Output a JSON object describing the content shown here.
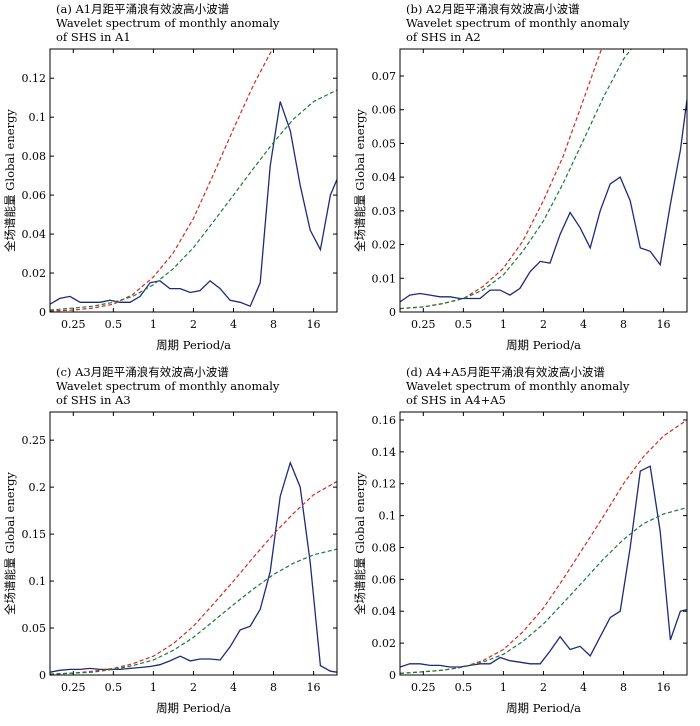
{
  "colors": {
    "spectrum": "#1f2a7a",
    "red_test": "#d22b1f",
    "green_test": "#1b7a3a",
    "frame": "#000000"
  },
  "chart_data": [
    {
      "type": "line",
      "title_line1": "(a) A1月距平涌浪有效波高小波谱",
      "title_line2": "Wavelet spectrum of monthly anomaly",
      "title_line3": "of SHS in A1",
      "xlabel": "周期 Period/a",
      "ylabel": "全场谱能量 Global energy",
      "xscale": "log2",
      "xlim": [
        0.167,
        24
      ],
      "ylim": [
        0,
        0.135
      ],
      "xticks": [
        0.25,
        0.5,
        1,
        2,
        4,
        8,
        16
      ],
      "xtick_labels": [
        "0.25",
        "0.5",
        "1",
        "2",
        "4",
        "8",
        "16"
      ],
      "yticks": [
        0,
        0.02,
        0.04,
        0.06,
        0.08,
        0.1,
        0.12
      ],
      "ytick_labels": [
        "0",
        "0.02",
        "0.04",
        "0.06",
        "0.08",
        "0.1",
        "0.12"
      ],
      "series": [
        {
          "style": "solid",
          "color": "#1f2a7a",
          "x": [
            0.167,
            0.198,
            0.236,
            0.281,
            0.334,
            0.397,
            0.472,
            0.561,
            0.667,
            0.794,
            0.944,
            1.12,
            1.33,
            1.59,
            1.89,
            2.24,
            2.67,
            3.17,
            3.77,
            4.49,
            5.34,
            6.35,
            7.55,
            8.98,
            10.7,
            12.7,
            15.1,
            18.0,
            21.4,
            24.0
          ],
          "y": [
            0.004,
            0.007,
            0.008,
            0.005,
            0.005,
            0.005,
            0.006,
            0.005,
            0.005,
            0.008,
            0.015,
            0.016,
            0.012,
            0.012,
            0.01,
            0.011,
            0.016,
            0.012,
            0.006,
            0.005,
            0.003,
            0.015,
            0.075,
            0.108,
            0.093,
            0.065,
            0.042,
            0.032,
            0.06,
            0.068
          ]
        },
        {
          "style": "dashed",
          "color": "#d22b1f",
          "x": [
            0.167,
            0.25,
            0.35,
            0.5,
            0.7,
            1.0,
            1.4,
            2.0,
            2.8,
            4.0,
            5.7,
            8.0,
            9.0
          ],
          "y": [
            0.0005,
            0.001,
            0.002,
            0.004,
            0.009,
            0.018,
            0.03,
            0.048,
            0.07,
            0.094,
            0.117,
            0.136,
            0.145
          ]
        },
        {
          "style": "dashed",
          "color": "#1b7a3a",
          "x": [
            0.167,
            0.25,
            0.35,
            0.5,
            0.7,
            1.0,
            1.4,
            2.0,
            2.8,
            4.0,
            5.7,
            8.0,
            11.3,
            16.0,
            24.0
          ],
          "y": [
            0.001,
            0.002,
            0.003,
            0.005,
            0.008,
            0.014,
            0.022,
            0.033,
            0.046,
            0.06,
            0.074,
            0.087,
            0.099,
            0.108,
            0.114
          ]
        }
      ]
    },
    {
      "type": "line",
      "title_line1": "(b) A2月距平涌浪有效波高小波谱",
      "title_line2": "Wavelet spectrum of monthly anomaly",
      "title_line3": "of SHS in A2",
      "xlabel": "周期 Period/a",
      "ylabel": "全场谱能量 Global energy",
      "xscale": "log2",
      "xlim": [
        0.167,
        24
      ],
      "ylim": [
        0,
        0.078
      ],
      "xticks": [
        0.25,
        0.5,
        1,
        2,
        4,
        8,
        16
      ],
      "xtick_labels": [
        "0.25",
        "0.5",
        "1",
        "2",
        "4",
        "8",
        "16"
      ],
      "yticks": [
        0,
        0.01,
        0.02,
        0.03,
        0.04,
        0.05,
        0.06,
        0.07
      ],
      "ytick_labels": [
        "0",
        "0.01",
        "0.02",
        "0.03",
        "0.04",
        "0.05",
        "0.06",
        "0.07"
      ],
      "series": [
        {
          "style": "solid",
          "color": "#1f2a7a",
          "x": [
            0.167,
            0.198,
            0.236,
            0.281,
            0.334,
            0.397,
            0.472,
            0.561,
            0.667,
            0.794,
            0.944,
            1.12,
            1.33,
            1.59,
            1.89,
            2.24,
            2.67,
            3.17,
            3.77,
            4.49,
            5.34,
            6.35,
            7.55,
            8.98,
            10.7,
            12.7,
            15.1,
            18.0,
            21.4,
            24.0
          ],
          "y": [
            0.003,
            0.005,
            0.0055,
            0.005,
            0.0045,
            0.0045,
            0.004,
            0.004,
            0.004,
            0.0065,
            0.0065,
            0.005,
            0.007,
            0.012,
            0.015,
            0.0145,
            0.023,
            0.0295,
            0.025,
            0.019,
            0.03,
            0.038,
            0.04,
            0.033,
            0.019,
            0.018,
            0.014,
            0.032,
            0.048,
            0.063
          ]
        },
        {
          "style": "dashed",
          "color": "#d22b1f",
          "x": [
            0.167,
            0.25,
            0.35,
            0.5,
            0.7,
            1.0,
            1.4,
            2.0,
            2.8,
            4.0,
            5.7,
            6.5
          ],
          "y": [
            0.001,
            0.0015,
            0.0025,
            0.004,
            0.0075,
            0.013,
            0.021,
            0.033,
            0.046,
            0.063,
            0.08,
            0.086
          ]
        },
        {
          "style": "dashed",
          "color": "#1b7a3a",
          "x": [
            0.167,
            0.25,
            0.35,
            0.5,
            0.7,
            1.0,
            1.4,
            2.0,
            2.8,
            4.0,
            5.7,
            8.0,
            10.0
          ],
          "y": [
            0.001,
            0.0015,
            0.0025,
            0.004,
            0.0065,
            0.011,
            0.018,
            0.027,
            0.038,
            0.051,
            0.064,
            0.075,
            0.08
          ]
        }
      ]
    },
    {
      "type": "line",
      "title_line1": "(c) A3月距平涌浪有效波高小波谱",
      "title_line2": "Wavelet spectrum of monthly anomaly",
      "title_line3": "of SHS in A3",
      "xlabel": "周期 Period/a",
      "ylabel": "全场谱能量 Global energy",
      "xscale": "log2",
      "xlim": [
        0.167,
        24
      ],
      "ylim": [
        0,
        0.28
      ],
      "xticks": [
        0.25,
        0.5,
        1,
        2,
        4,
        8,
        16
      ],
      "xtick_labels": [
        "0.25",
        "0.5",
        "1",
        "2",
        "4",
        "8",
        "16"
      ],
      "yticks": [
        0,
        0.05,
        0.1,
        0.15,
        0.2,
        0.25
      ],
      "ytick_labels": [
        "0",
        "0.05",
        "0.1",
        "0.15",
        "0.2",
        "0.25"
      ],
      "series": [
        {
          "style": "solid",
          "color": "#1f2a7a",
          "x": [
            0.167,
            0.198,
            0.236,
            0.281,
            0.334,
            0.397,
            0.472,
            0.561,
            0.667,
            0.794,
            0.944,
            1.12,
            1.33,
            1.59,
            1.89,
            2.24,
            2.67,
            3.17,
            3.77,
            4.49,
            5.34,
            6.35,
            7.55,
            8.98,
            10.7,
            12.7,
            15.1,
            18.0,
            21.4,
            24.0
          ],
          "y": [
            0.003,
            0.005,
            0.006,
            0.006,
            0.007,
            0.006,
            0.006,
            0.006,
            0.007,
            0.008,
            0.009,
            0.011,
            0.015,
            0.02,
            0.015,
            0.017,
            0.017,
            0.016,
            0.03,
            0.048,
            0.052,
            0.07,
            0.11,
            0.19,
            0.226,
            0.2,
            0.12,
            0.01,
            0.004,
            0.003
          ]
        },
        {
          "style": "dashed",
          "color": "#d22b1f",
          "x": [
            0.167,
            0.25,
            0.35,
            0.5,
            0.7,
            1.0,
            1.4,
            2.0,
            2.8,
            4.0,
            5.7,
            8.0,
            11.3,
            16.0,
            24.0
          ],
          "y": [
            0.001,
            0.002,
            0.004,
            0.007,
            0.012,
            0.02,
            0.033,
            0.052,
            0.075,
            0.1,
            0.126,
            0.15,
            0.172,
            0.192,
            0.206
          ]
        },
        {
          "style": "dashed",
          "color": "#1b7a3a",
          "x": [
            0.167,
            0.25,
            0.35,
            0.5,
            0.7,
            1.0,
            1.4,
            2.0,
            2.8,
            4.0,
            5.7,
            8.0,
            11.3,
            16.0,
            24.0
          ],
          "y": [
            0.001,
            0.002,
            0.003,
            0.006,
            0.01,
            0.016,
            0.026,
            0.04,
            0.057,
            0.075,
            0.092,
            0.107,
            0.119,
            0.128,
            0.134
          ]
        }
      ]
    },
    {
      "type": "line",
      "title_line1": "(d) A4+A5月距平涌浪有效波高小波谱",
      "title_line2": "Wavelet spectrum of monthly anomaly",
      "title_line3": "of SHS in A4+A5",
      "xlabel": "周期 Period/a",
      "ylabel": "全场谱能量 Global energy",
      "xscale": "log2",
      "xlim": [
        0.167,
        24
      ],
      "ylim": [
        0,
        0.165
      ],
      "xticks": [
        0.25,
        0.5,
        1,
        2,
        4,
        8,
        16
      ],
      "xtick_labels": [
        "0.25",
        "0.5",
        "1",
        "2",
        "4",
        "8",
        "16"
      ],
      "yticks": [
        0,
        0.02,
        0.04,
        0.06,
        0.08,
        0.1,
        0.12,
        0.14,
        0.16
      ],
      "ytick_labels": [
        "0",
        "0.02",
        "0.04",
        "0.06",
        "0.08",
        "0.1",
        "0.12",
        "0.14",
        "0.16"
      ],
      "series": [
        {
          "style": "solid",
          "color": "#1f2a7a",
          "x": [
            0.167,
            0.198,
            0.236,
            0.281,
            0.334,
            0.397,
            0.472,
            0.561,
            0.667,
            0.794,
            0.944,
            1.12,
            1.33,
            1.59,
            1.89,
            2.24,
            2.67,
            3.17,
            3.77,
            4.49,
            5.34,
            6.35,
            7.55,
            8.98,
            10.7,
            12.7,
            15.1,
            18.0,
            21.4,
            24.0
          ],
          "y": [
            0.005,
            0.007,
            0.007,
            0.006,
            0.006,
            0.005,
            0.005,
            0.006,
            0.007,
            0.007,
            0.011,
            0.009,
            0.008,
            0.007,
            0.007,
            0.015,
            0.024,
            0.016,
            0.018,
            0.012,
            0.024,
            0.036,
            0.04,
            0.08,
            0.128,
            0.131,
            0.09,
            0.022,
            0.04,
            0.041
          ]
        },
        {
          "style": "dashed",
          "color": "#d22b1f",
          "x": [
            0.167,
            0.25,
            0.35,
            0.5,
            0.7,
            1.0,
            1.4,
            2.0,
            2.8,
            4.0,
            5.7,
            8.0,
            11.3,
            16.0,
            24.0
          ],
          "y": [
            0.001,
            0.002,
            0.003,
            0.005,
            0.009,
            0.016,
            0.027,
            0.042,
            0.06,
            0.08,
            0.1,
            0.12,
            0.137,
            0.15,
            0.16
          ]
        },
        {
          "style": "dashed",
          "color": "#1b7a3a",
          "x": [
            0.167,
            0.25,
            0.35,
            0.5,
            0.7,
            1.0,
            1.4,
            2.0,
            2.8,
            4.0,
            5.7,
            8.0,
            11.3,
            16.0,
            24.0
          ],
          "y": [
            0.001,
            0.002,
            0.003,
            0.005,
            0.008,
            0.013,
            0.021,
            0.032,
            0.045,
            0.059,
            0.073,
            0.085,
            0.095,
            0.101,
            0.105
          ]
        }
      ]
    }
  ]
}
